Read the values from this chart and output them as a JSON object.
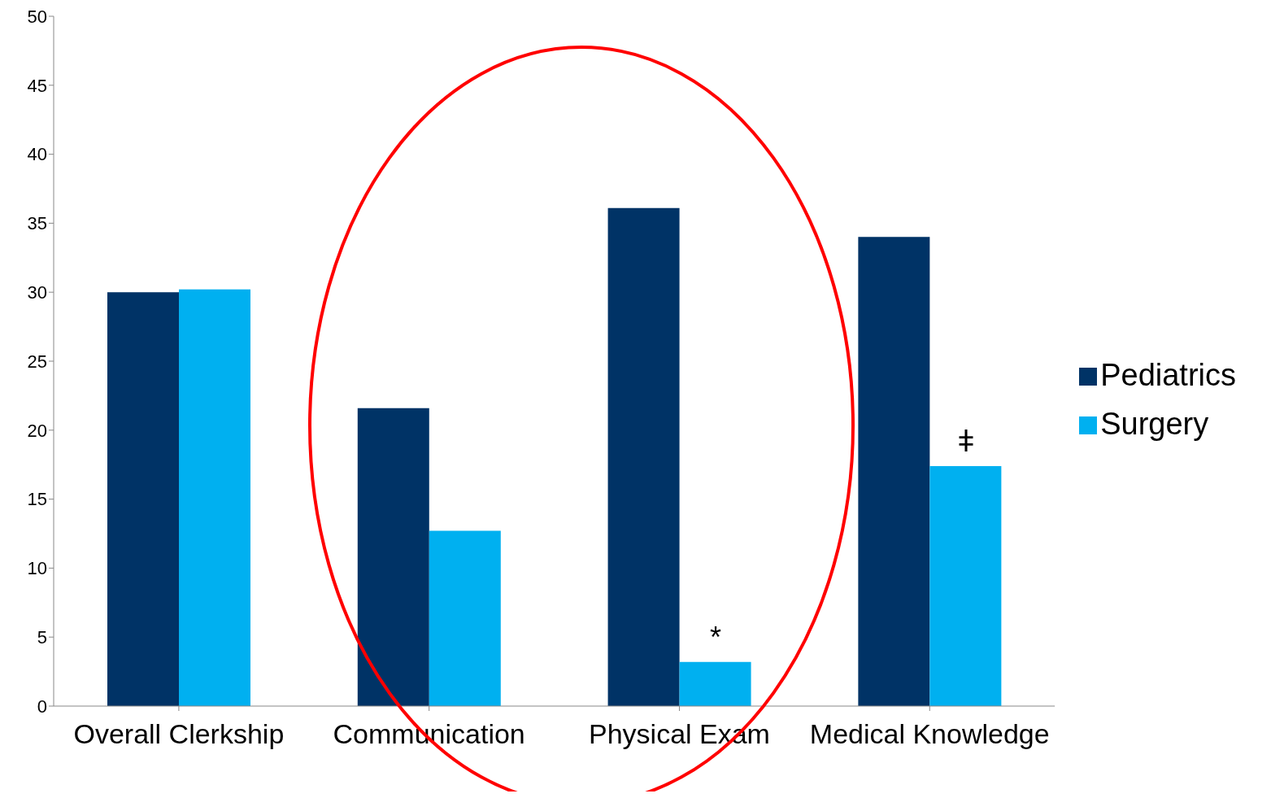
{
  "chart_data": {
    "type": "bar",
    "categories": [
      "Overall Clerkship",
      "Communication",
      "Physical Exam",
      "Medical Knowledge"
    ],
    "series": [
      {
        "name": "Pediatrics",
        "color": "#003366",
        "values": [
          30,
          21.6,
          36.1,
          34
        ]
      },
      {
        "name": "Surgery",
        "color": "#00b0f0",
        "values": [
          30.2,
          12.7,
          3.2,
          17.4
        ]
      }
    ],
    "ylim": [
      0,
      50
    ],
    "yticks": [
      0,
      5,
      10,
      15,
      20,
      25,
      30,
      35,
      40,
      45,
      50
    ],
    "grid": false,
    "legend": "right",
    "annotations": [
      {
        "text": "*",
        "x": "Physical Exam",
        "y": 3.2
      },
      {
        "text": "ǂ",
        "x": "Medical Knowledge",
        "y": 17.4
      }
    ]
  }
}
